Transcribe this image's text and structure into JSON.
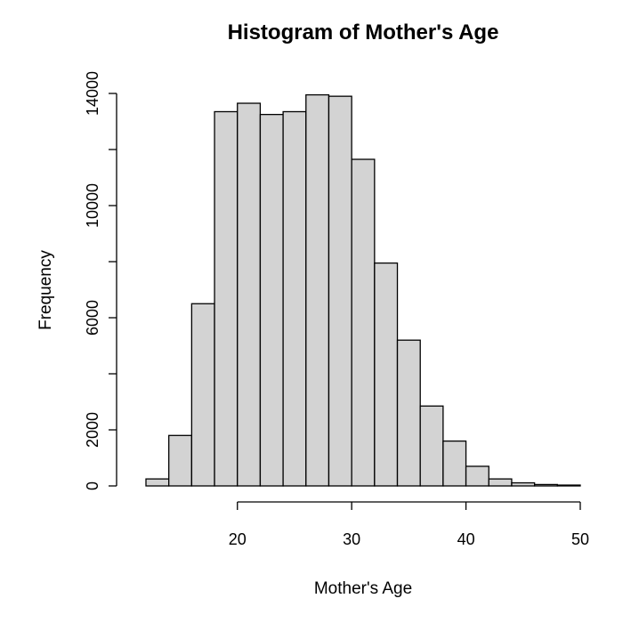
{
  "chart_data": {
    "type": "bar",
    "title": "Histogram of Mother's Age",
    "xlabel": "Mother's Age",
    "ylabel": "Frequency",
    "bin_edges": [
      12,
      14,
      16,
      18,
      20,
      22,
      24,
      26,
      28,
      30,
      32,
      34,
      36,
      38,
      40,
      42,
      44,
      46,
      48,
      50
    ],
    "values": [
      250,
      1800,
      6500,
      13350,
      13650,
      13250,
      13350,
      13950,
      13900,
      11650,
      7950,
      5200,
      2850,
      1600,
      700,
      250,
      110,
      50,
      30
    ],
    "xlim": [
      12,
      50
    ],
    "ylim": [
      0,
      14000
    ],
    "xticks": [
      20,
      30,
      40,
      50
    ],
    "yticks": [
      0,
      2000,
      6000,
      10000,
      14000
    ],
    "grid": false,
    "bar_color": "#d3d3d3"
  }
}
